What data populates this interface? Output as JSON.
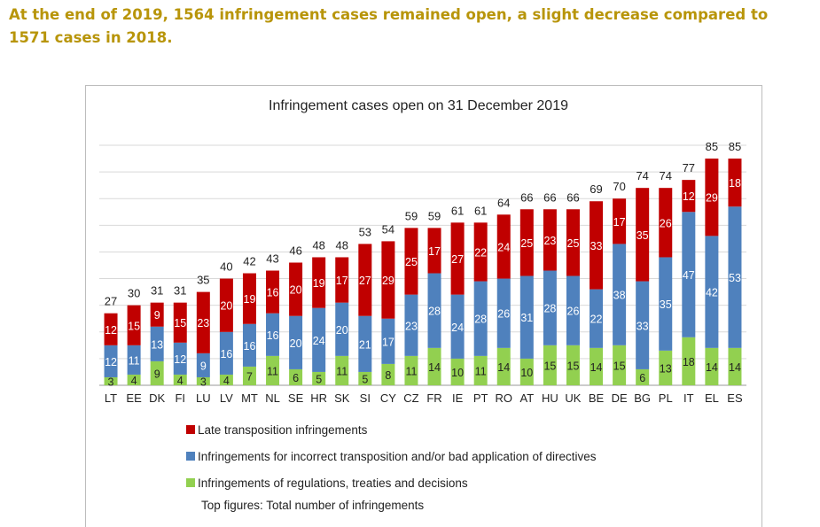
{
  "headline": "At the end of 2019, 1564 infringement cases remained open, a slight decrease compared to 1571 cases in 2018.",
  "chart_data": {
    "type": "bar",
    "stacked": true,
    "title": "Infringement cases open on 31 December 2019",
    "categories": [
      "LT",
      "EE",
      "DK",
      "FI",
      "LU",
      "LV",
      "MT",
      "NL",
      "SE",
      "HR",
      "SK",
      "SI",
      "CY",
      "CZ",
      "FR",
      "IE",
      "PT",
      "RO",
      "AT",
      "HU",
      "UK",
      "BE",
      "DE",
      "BG",
      "PL",
      "IT",
      "EL",
      "ES"
    ],
    "series": [
      {
        "name": "Infringements of regulations, treaties and decisions",
        "color": "#92d050",
        "values": [
          3,
          4,
          9,
          4,
          3,
          4,
          7,
          11,
          6,
          5,
          11,
          5,
          8,
          11,
          14,
          10,
          11,
          14,
          10,
          15,
          15,
          14,
          15,
          6,
          13,
          18,
          14,
          14
        ]
      },
      {
        "name": "Infringements for incorrect transposition and/or bad application of directives",
        "color": "#4f81bd",
        "values": [
          12,
          11,
          13,
          12,
          9,
          16,
          16,
          16,
          20,
          24,
          20,
          21,
          17,
          23,
          28,
          24,
          28,
          26,
          31,
          28,
          26,
          22,
          38,
          33,
          35,
          47,
          42,
          53
        ]
      },
      {
        "name": "Late transposition infringements",
        "color": "#c00000",
        "values": [
          12,
          15,
          9,
          15,
          23,
          20,
          19,
          16,
          20,
          19,
          17,
          27,
          29,
          25,
          17,
          27,
          22,
          24,
          25,
          23,
          25,
          33,
          17,
          35,
          26,
          12,
          29,
          18
        ]
      }
    ],
    "totals": [
      27,
      30,
      31,
      31,
      35,
      40,
      42,
      43,
      46,
      48,
      48,
      53,
      54,
      59,
      59,
      61,
      61,
      64,
      66,
      66,
      66,
      69,
      70,
      74,
      74,
      77,
      85,
      85
    ],
    "ylim": [
      0,
      90
    ],
    "grid": true,
    "legend_placement": "bottom",
    "note": "Top figures: Total number of infringements"
  }
}
